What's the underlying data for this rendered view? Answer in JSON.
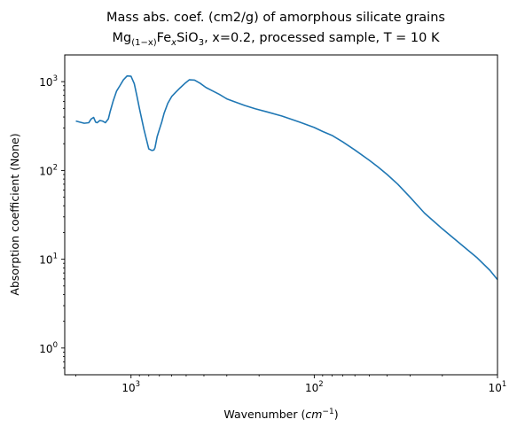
{
  "chart_data": {
    "type": "line",
    "title": {
      "line1": "Mass abs. coef. (cm2/g) of amorphous silicate grains",
      "line2_parts": [
        "Mg",
        "(1−x)",
        "Fe",
        "x",
        "SiO",
        "3",
        ", x=0.2, processed sample, T =  10 K"
      ]
    },
    "xlabel_parts": [
      "Wavenumber (",
      "cm",
      "−1",
      ")"
    ],
    "ylabel": "Absorption coefficient (None)",
    "xscale": "log",
    "yscale": "log",
    "x_inverted": true,
    "xlim": [
      2300,
      10
    ],
    "ylim": [
      0.5,
      2000
    ],
    "xticks": [
      {
        "value": 1000,
        "base": "10",
        "exp": "3"
      },
      {
        "value": 100,
        "base": "10",
        "exp": "2"
      },
      {
        "value": 10,
        "base": "10",
        "exp": "1"
      }
    ],
    "yticks": [
      {
        "value": 1,
        "base": "10",
        "exp": "0"
      },
      {
        "value": 10,
        "base": "10",
        "exp": "1"
      },
      {
        "value": 100,
        "base": "10",
        "exp": "2"
      },
      {
        "value": 1000,
        "base": "10",
        "exp": "3"
      }
    ],
    "line_color": "#1f77b4",
    "series": [
      {
        "x": [
          2000,
          1900,
          1800,
          1700,
          1650,
          1600,
          1560,
          1530,
          1480,
          1430,
          1380,
          1330,
          1300,
          1250,
          1200,
          1150,
          1100,
          1050,
          1000,
          960,
          930,
          900,
          850,
          800,
          770,
          750,
          740,
          720,
          700,
          680,
          660,
          630,
          600,
          570,
          540,
          510,
          480,
          450,
          420,
          390,
          360,
          330,
          300,
          270,
          240,
          210,
          180,
          150,
          120,
          100,
          90,
          80,
          70,
          60,
          50,
          45,
          40,
          35,
          30,
          25,
          20,
          16,
          13,
          11,
          10
        ],
        "y": [
          360,
          350,
          340,
          345,
          380,
          395,
          350,
          345,
          365,
          360,
          345,
          380,
          460,
          610,
          780,
          900,
          1050,
          1160,
          1150,
          950,
          700,
          500,
          290,
          175,
          168,
          170,
          180,
          240,
          290,
          350,
          440,
          570,
          680,
          760,
          850,
          950,
          1050,
          1040,
          960,
          860,
          790,
          720,
          640,
          590,
          540,
          495,
          455,
          410,
          350,
          305,
          275,
          248,
          210,
          170,
          130,
          110,
          90,
          70,
          50,
          33,
          22,
          15,
          10.5,
          7.5,
          5.9
        ]
      }
    ]
  }
}
